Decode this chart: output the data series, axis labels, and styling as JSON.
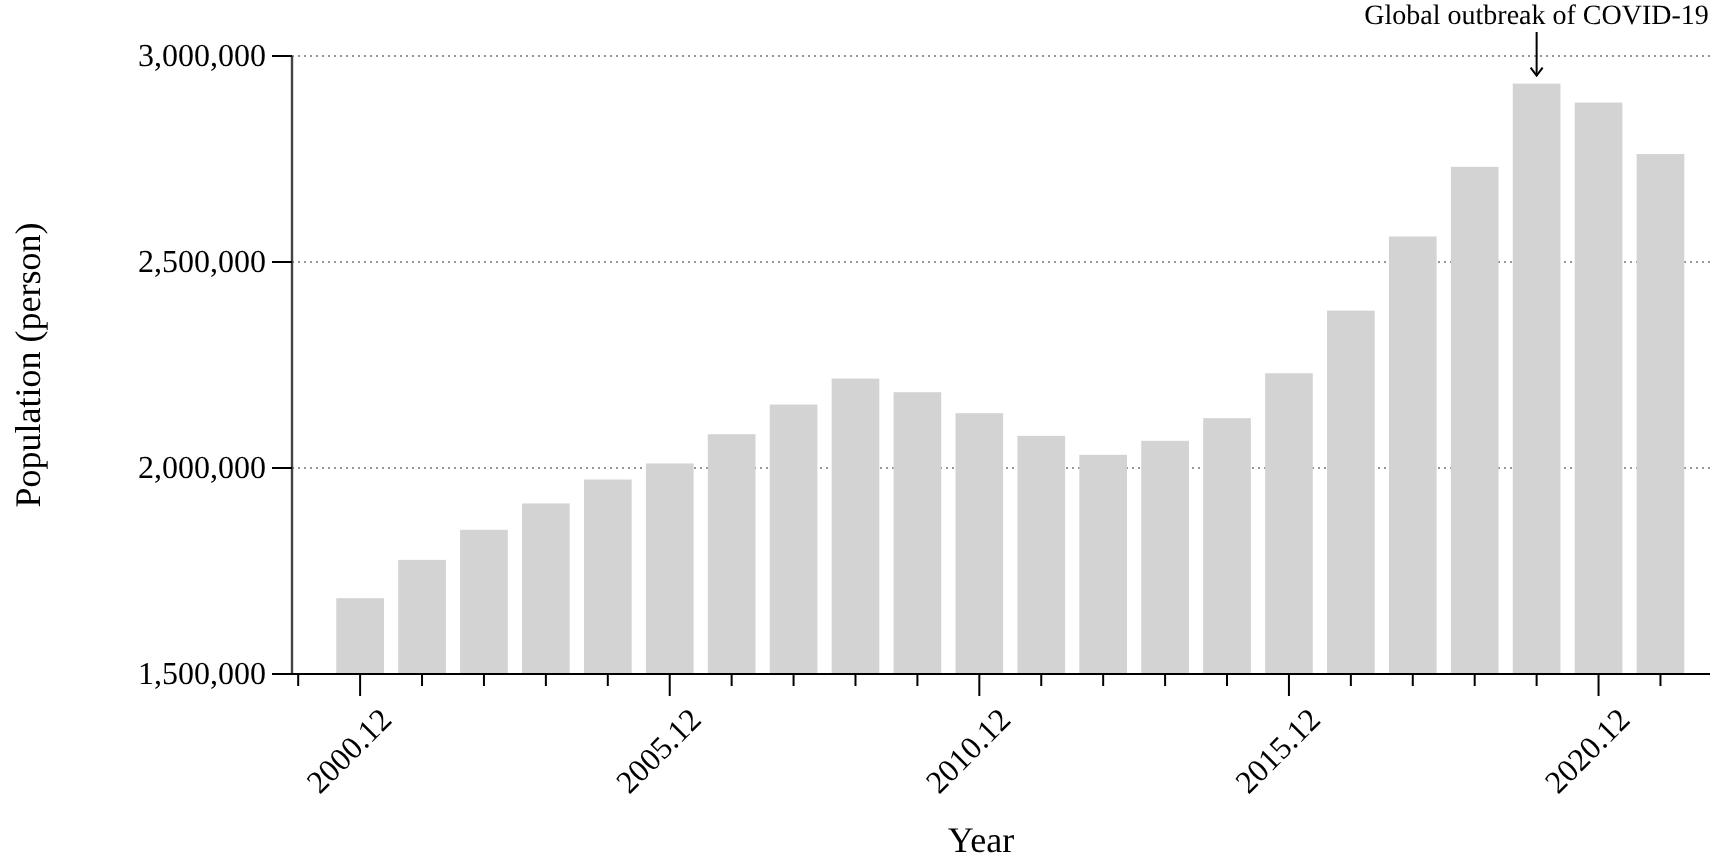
{
  "chart_data": {
    "type": "bar",
    "xlabel": "Year",
    "ylabel": "Population (person)",
    "categories": [
      "2000.12",
      null,
      null,
      null,
      null,
      "2005.12",
      null,
      null,
      null,
      null,
      "2010.12",
      null,
      null,
      null,
      null,
      "2015.12",
      null,
      null,
      null,
      null,
      "2020.12",
      null
    ],
    "values": [
      1684000,
      1777000,
      1850000,
      1914000,
      1972000,
      2011000,
      2082000,
      2154000,
      2217000,
      2184000,
      2133000,
      2078000,
      2032000,
      2066000,
      2121000,
      2230000,
      2382000,
      2562000,
      2731000,
      2933000,
      2887000,
      2762000
    ],
    "color": "#d3d3d3",
    "ylim": [
      1500000,
      3000000
    ],
    "yticks": [
      {
        "value": 1500000,
        "label": "1,500,000"
      },
      {
        "value": 2000000,
        "label": "2,000,000"
      },
      {
        "value": 2500000,
        "label": "2,500,000"
      },
      {
        "value": 3000000,
        "label": "3,000,000"
      }
    ],
    "grid": "y",
    "annotations": [
      {
        "text": "Global outbreak of COVID-19",
        "y": 2933000
      }
    ]
  }
}
